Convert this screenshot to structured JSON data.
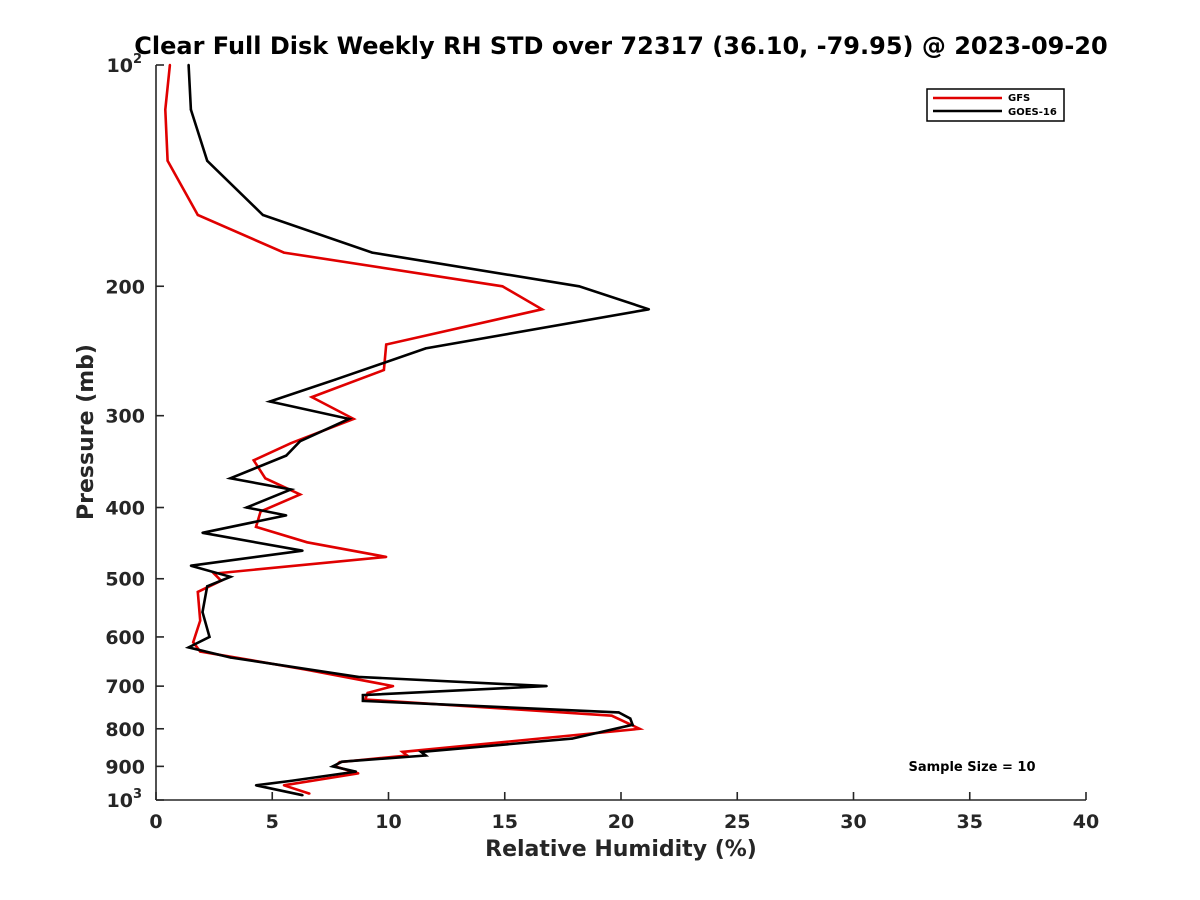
{
  "chart_data": {
    "type": "line",
    "title": "Clear Full Disk Weekly RH STD over 72317 (36.10, -79.95) @ 2023-09-20",
    "xlabel": "Relative Humidity (%)",
    "ylabel": "Pressure (mb)",
    "xlim": [
      0,
      40
    ],
    "ylim": [
      100,
      1000
    ],
    "y_scale": "log",
    "y_reversed": true,
    "x_ticks": [
      "0",
      "5",
      "10",
      "15",
      "20",
      "25",
      "30",
      "35",
      "40"
    ],
    "y_ticks": [
      {
        "value": 100,
        "label": "10",
        "sup": "2"
      },
      {
        "value": 200,
        "label": "200",
        "sup": ""
      },
      {
        "value": 300,
        "label": "300",
        "sup": ""
      },
      {
        "value": 400,
        "label": "400",
        "sup": ""
      },
      {
        "value": 500,
        "label": "500",
        "sup": ""
      },
      {
        "value": 600,
        "label": "600",
        "sup": ""
      },
      {
        "value": 700,
        "label": "700",
        "sup": ""
      },
      {
        "value": 800,
        "label": "800",
        "sup": ""
      },
      {
        "value": 900,
        "label": "900",
        "sup": ""
      },
      {
        "value": 1000,
        "label": "10",
        "sup": "3"
      }
    ],
    "legend_position": "top-right",
    "grid": false,
    "annotation": "Sample Size = 10",
    "series": [
      {
        "name": "GFS",
        "color": "#e00000",
        "points": [
          [
            0.6,
            100
          ],
          [
            0.4,
            115
          ],
          [
            0.5,
            135
          ],
          [
            1.8,
            160
          ],
          [
            5.5,
            180
          ],
          [
            14.9,
            200
          ],
          [
            16.6,
            215
          ],
          [
            9.9,
            240
          ],
          [
            9.8,
            260
          ],
          [
            6.7,
            283
          ],
          [
            8.5,
            303
          ],
          [
            5.8,
            327
          ],
          [
            4.2,
            345
          ],
          [
            4.7,
            365
          ],
          [
            6.2,
            384
          ],
          [
            4.5,
            405
          ],
          [
            4.3,
            425
          ],
          [
            6.5,
            446
          ],
          [
            9.9,
            467
          ],
          [
            2.5,
            492
          ],
          [
            2.8,
            503
          ],
          [
            1.8,
            521
          ],
          [
            1.9,
            570
          ],
          [
            1.6,
            610
          ],
          [
            1.9,
            628
          ],
          [
            6.5,
            665
          ],
          [
            10.2,
            700
          ],
          [
            9.1,
            715
          ],
          [
            9.0,
            730
          ],
          [
            19.6,
            768
          ],
          [
            20.8,
            800
          ],
          [
            10.6,
            860
          ],
          [
            10.8,
            870
          ],
          [
            7.9,
            888
          ],
          [
            7.7,
            900
          ],
          [
            8.7,
            920
          ],
          [
            5.5,
            955
          ],
          [
            6.6,
            980
          ]
        ]
      },
      {
        "name": "GOES-16",
        "color": "#000000",
        "points": [
          [
            1.4,
            100
          ],
          [
            1.5,
            115
          ],
          [
            2.2,
            135
          ],
          [
            4.6,
            160
          ],
          [
            9.3,
            180
          ],
          [
            18.2,
            200
          ],
          [
            21.2,
            215
          ],
          [
            11.6,
            243
          ],
          [
            7.7,
            268
          ],
          [
            4.9,
            287
          ],
          [
            8.3,
            303
          ],
          [
            6.2,
            325
          ],
          [
            5.6,
            340
          ],
          [
            3.2,
            365
          ],
          [
            5.8,
            378
          ],
          [
            3.9,
            400
          ],
          [
            5.6,
            410
          ],
          [
            2.0,
            433
          ],
          [
            6.3,
            458
          ],
          [
            1.5,
            480
          ],
          [
            3.2,
            497
          ],
          [
            2.2,
            512
          ],
          [
            2.0,
            555
          ],
          [
            2.3,
            600
          ],
          [
            1.4,
            620
          ],
          [
            3.2,
            640
          ],
          [
            8.7,
            680
          ],
          [
            16.8,
            700
          ],
          [
            8.9,
            720
          ],
          [
            8.9,
            733
          ],
          [
            19.9,
            760
          ],
          [
            20.4,
            775
          ],
          [
            20.5,
            790
          ],
          [
            17.9,
            825
          ],
          [
            11.4,
            860
          ],
          [
            11.6,
            870
          ],
          [
            8.0,
            887
          ],
          [
            7.6,
            900
          ],
          [
            8.6,
            915
          ],
          [
            5.8,
            942
          ],
          [
            4.3,
            955
          ],
          [
            6.3,
            985
          ]
        ]
      }
    ]
  }
}
